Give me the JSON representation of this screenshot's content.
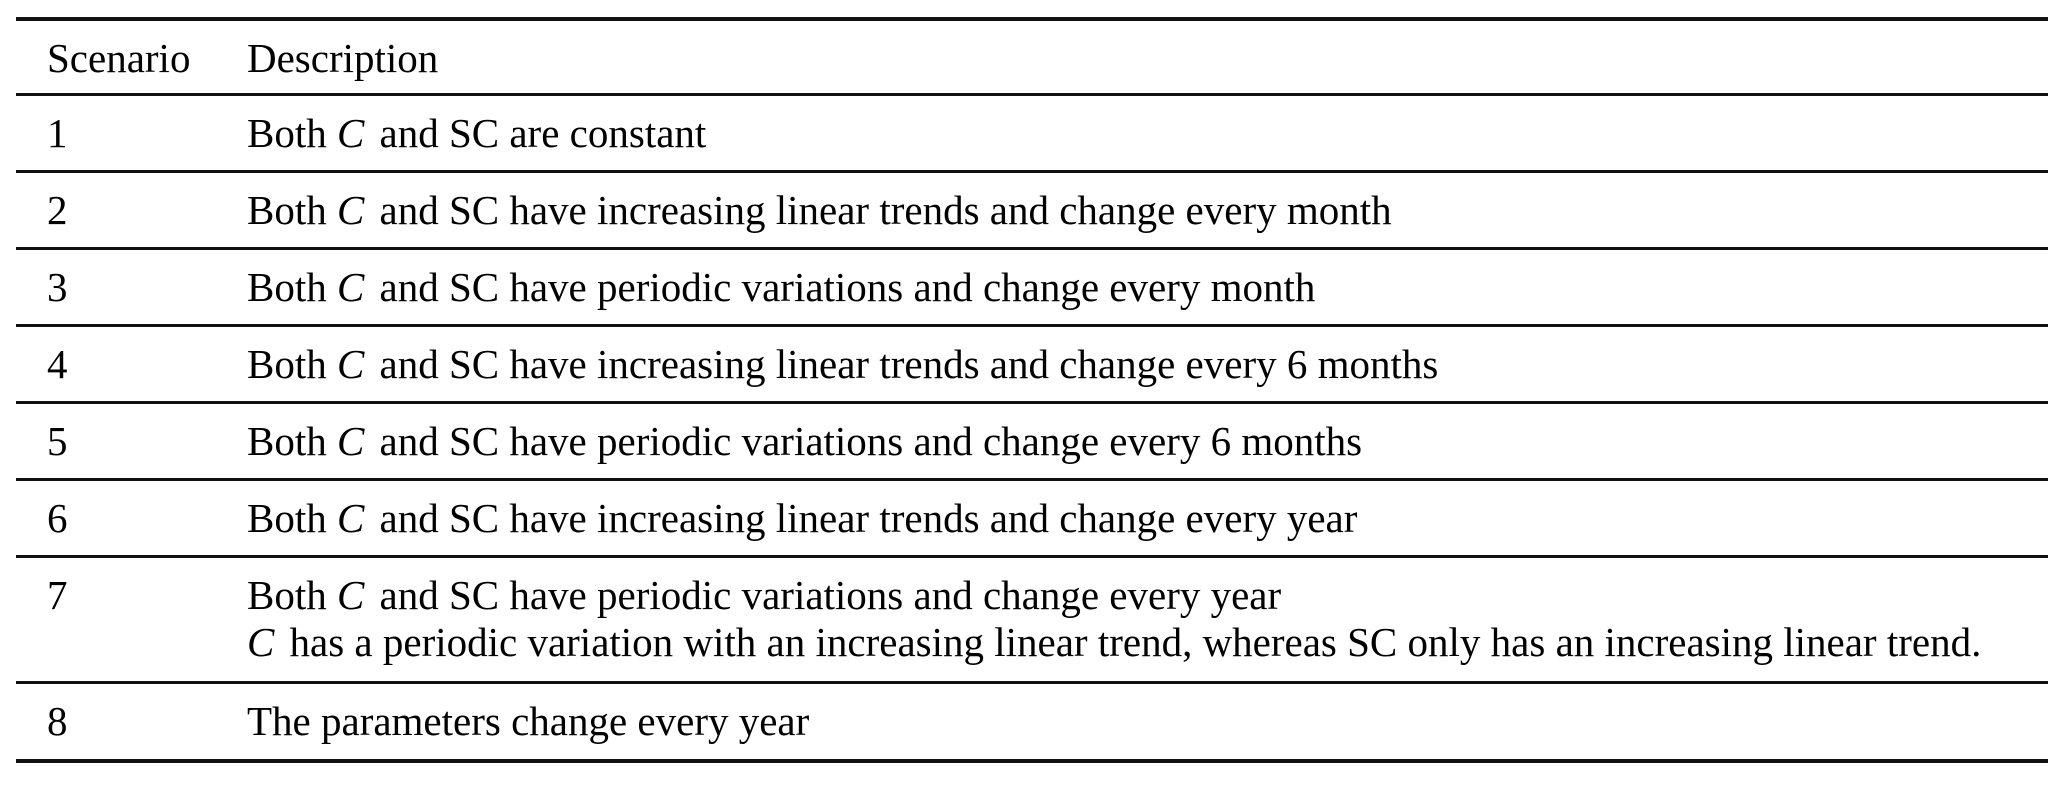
{
  "table": {
    "columns": [
      "Scenario",
      "Description"
    ],
    "rows": [
      {
        "scenario": "1",
        "lines": [
          "Both *C* and SC are constant"
        ]
      },
      {
        "scenario": "2",
        "lines": [
          "Both *C* and SC have increasing linear trends and change every month"
        ]
      },
      {
        "scenario": "3",
        "lines": [
          "Both *C* and SC have periodic variations and change every month"
        ]
      },
      {
        "scenario": "4",
        "lines": [
          "Both *C* and SC have increasing linear trends and change every 6 months"
        ]
      },
      {
        "scenario": "5",
        "lines": [
          "Both *C* and SC have periodic variations and change every 6 months"
        ]
      },
      {
        "scenario": "6",
        "lines": [
          "Both *C* and SC have increasing linear trends and change every year"
        ]
      },
      {
        "scenario": "7",
        "lines": [
          "Both *C* and SC have periodic variations and change every year",
          "*C* has a periodic variation with an increasing linear trend, whereas SC only has an increasing linear trend."
        ]
      },
      {
        "scenario": "8",
        "lines": [
          "The parameters change every year"
        ]
      }
    ]
  },
  "colors": {
    "background": "#ffffff",
    "text": "#000000",
    "rule": "#111111"
  }
}
